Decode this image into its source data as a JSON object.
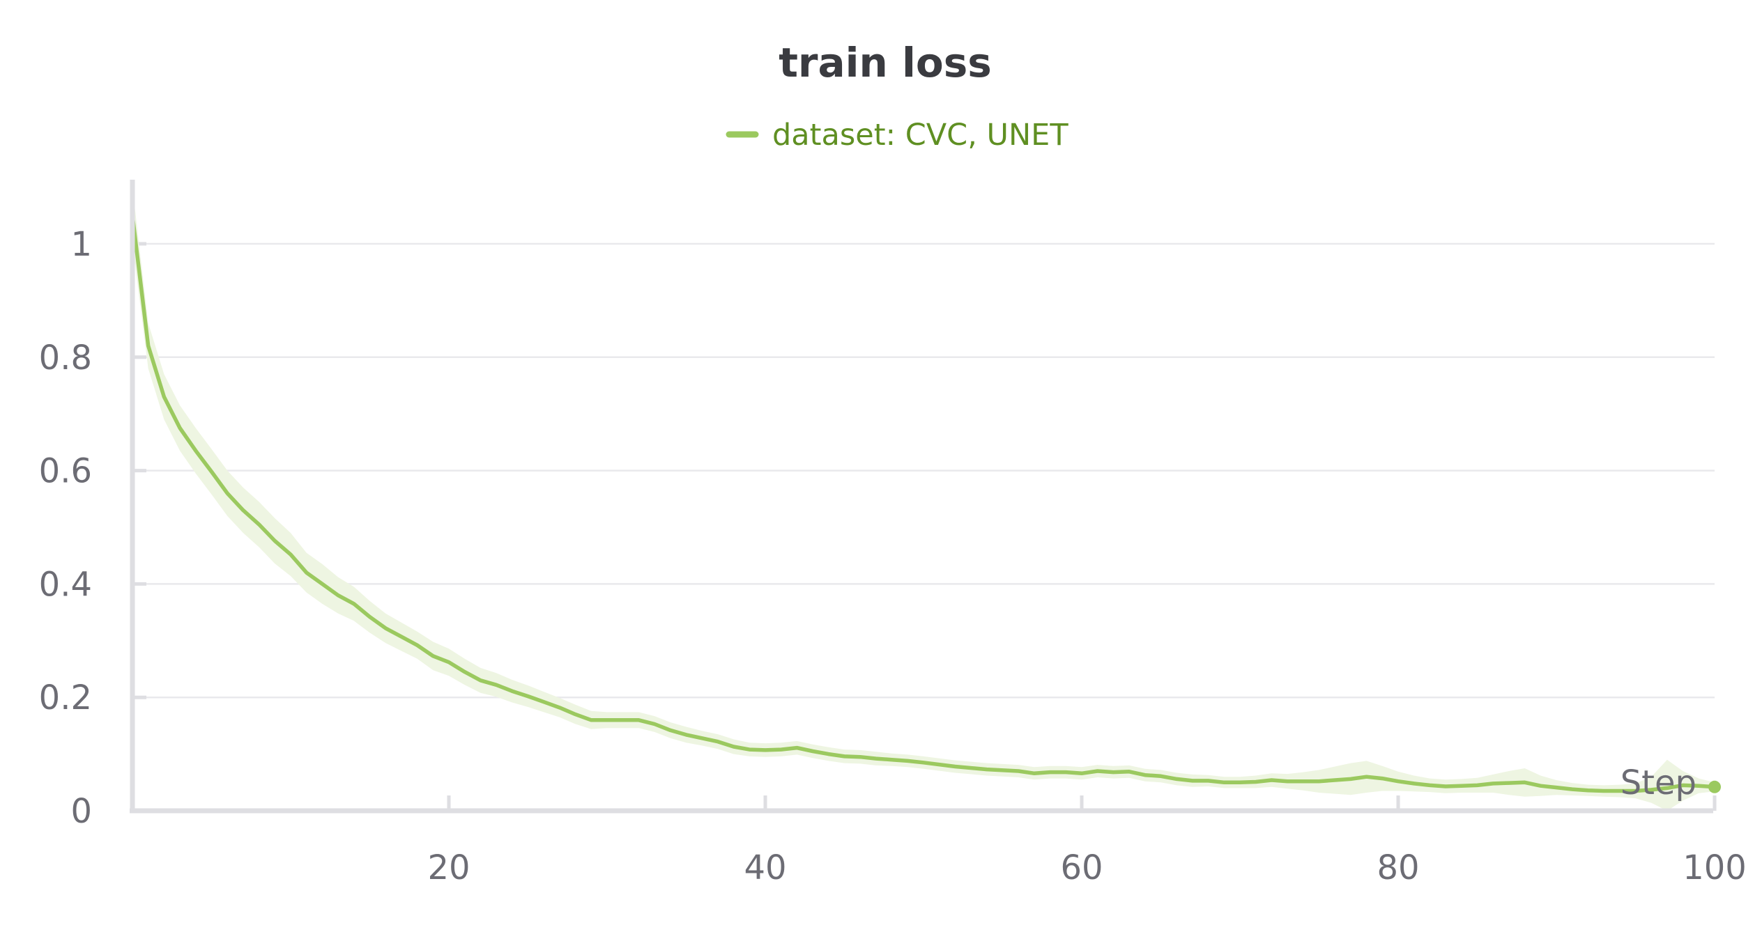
{
  "chart_data": {
    "type": "line",
    "title": "train loss",
    "xlabel": "Step",
    "ylabel": "",
    "xlim": [
      0,
      100
    ],
    "ylim": [
      0,
      1.1
    ],
    "x_ticks": [
      20,
      40,
      60,
      80,
      "100"
    ],
    "y_ticks": [
      0,
      0.2,
      0.4,
      0.6,
      0.8,
      1
    ],
    "y_tick_labels": [
      "0",
      "0.2",
      "0.4",
      "0.6",
      "0.8",
      "1"
    ],
    "x_tick_labels": [
      "20",
      "40",
      "60",
      "80",
      "100"
    ],
    "grid": true,
    "legend_position": "top-center",
    "series": [
      {
        "name": "dataset: CVC, UNET",
        "color": "#9bc95f",
        "band_color": "#eef5e2",
        "legend_text_color": "#5f8f22",
        "x": [
          0,
          1,
          2,
          3,
          4,
          5,
          6,
          7,
          8,
          9,
          10,
          11,
          12,
          13,
          14,
          15,
          16,
          17,
          18,
          19,
          20,
          21,
          22,
          23,
          24,
          25,
          26,
          27,
          28,
          29,
          30,
          32,
          33,
          34,
          35,
          36,
          37,
          38,
          39,
          40,
          41,
          42,
          43,
          44,
          45,
          46,
          47,
          48,
          49,
          50,
          52,
          54,
          56,
          57,
          58,
          59,
          60,
          61,
          62,
          63,
          64,
          65,
          66,
          67,
          68,
          69,
          70,
          71,
          72,
          73,
          74,
          75,
          76,
          77,
          78,
          79,
          80,
          81,
          82,
          83,
          84,
          85,
          86,
          87,
          88,
          89,
          90,
          91,
          92,
          93,
          94,
          95,
          96,
          97,
          98,
          99,
          100
        ],
        "values": [
          1.05,
          0.82,
          0.73,
          0.675,
          0.635,
          0.598,
          0.56,
          0.53,
          0.505,
          0.476,
          0.452,
          0.42,
          0.4,
          0.38,
          0.365,
          0.342,
          0.322,
          0.307,
          0.292,
          0.273,
          0.262,
          0.245,
          0.23,
          0.222,
          0.211,
          0.202,
          0.192,
          0.182,
          0.17,
          0.16,
          0.16,
          0.16,
          0.153,
          0.142,
          0.134,
          0.128,
          0.122,
          0.113,
          0.108,
          0.107,
          0.108,
          0.111,
          0.105,
          0.1,
          0.096,
          0.095,
          0.092,
          0.09,
          0.088,
          0.085,
          0.078,
          0.073,
          0.07,
          0.066,
          0.068,
          0.068,
          0.066,
          0.07,
          0.068,
          0.069,
          0.063,
          0.061,
          0.056,
          0.053,
          0.053,
          0.05,
          0.05,
          0.051,
          0.054,
          0.052,
          0.052,
          0.052,
          0.054,
          0.056,
          0.06,
          0.057,
          0.052,
          0.048,
          0.045,
          0.043,
          0.044,
          0.045,
          0.048,
          0.049,
          0.05,
          0.044,
          0.041,
          0.038,
          0.036,
          0.035,
          0.035,
          0.035,
          0.037,
          0.04,
          0.045,
          0.044,
          0.042
        ],
        "band_upper": [
          1.1,
          0.86,
          0.77,
          0.715,
          0.675,
          0.638,
          0.6,
          0.57,
          0.545,
          0.516,
          0.49,
          0.455,
          0.435,
          0.412,
          0.395,
          0.37,
          0.348,
          0.332,
          0.316,
          0.298,
          0.286,
          0.268,
          0.252,
          0.243,
          0.231,
          0.221,
          0.21,
          0.199,
          0.187,
          0.176,
          0.174,
          0.174,
          0.167,
          0.156,
          0.148,
          0.141,
          0.135,
          0.126,
          0.12,
          0.119,
          0.12,
          0.123,
          0.117,
          0.112,
          0.108,
          0.107,
          0.104,
          0.101,
          0.099,
          0.096,
          0.089,
          0.084,
          0.081,
          0.077,
          0.079,
          0.079,
          0.077,
          0.081,
          0.079,
          0.08,
          0.074,
          0.072,
          0.067,
          0.064,
          0.063,
          0.06,
          0.06,
          0.062,
          0.066,
          0.065,
          0.068,
          0.072,
          0.078,
          0.084,
          0.088,
          0.079,
          0.069,
          0.062,
          0.057,
          0.055,
          0.056,
          0.058,
          0.064,
          0.07,
          0.075,
          0.062,
          0.054,
          0.049,
          0.046,
          0.045,
          0.046,
          0.048,
          0.06,
          0.09,
          0.07,
          0.057,
          0.05
        ],
        "band_lower": [
          1.0,
          0.78,
          0.69,
          0.635,
          0.595,
          0.558,
          0.52,
          0.49,
          0.465,
          0.436,
          0.414,
          0.385,
          0.365,
          0.348,
          0.335,
          0.314,
          0.296,
          0.282,
          0.268,
          0.248,
          0.238,
          0.222,
          0.208,
          0.201,
          0.191,
          0.183,
          0.174,
          0.165,
          0.153,
          0.144,
          0.146,
          0.146,
          0.139,
          0.128,
          0.12,
          0.115,
          0.109,
          0.1,
          0.096,
          0.095,
          0.096,
          0.099,
          0.093,
          0.088,
          0.084,
          0.083,
          0.08,
          0.079,
          0.077,
          0.074,
          0.067,
          0.062,
          0.059,
          0.055,
          0.057,
          0.057,
          0.055,
          0.059,
          0.057,
          0.058,
          0.052,
          0.05,
          0.045,
          0.042,
          0.043,
          0.04,
          0.04,
          0.04,
          0.042,
          0.039,
          0.036,
          0.032,
          0.03,
          0.028,
          0.032,
          0.035,
          0.035,
          0.034,
          0.033,
          0.031,
          0.032,
          0.032,
          0.032,
          0.028,
          0.025,
          0.026,
          0.028,
          0.027,
          0.026,
          0.025,
          0.024,
          0.022,
          0.014,
          0.0,
          0.018,
          0.031,
          0.034
        ]
      }
    ]
  }
}
